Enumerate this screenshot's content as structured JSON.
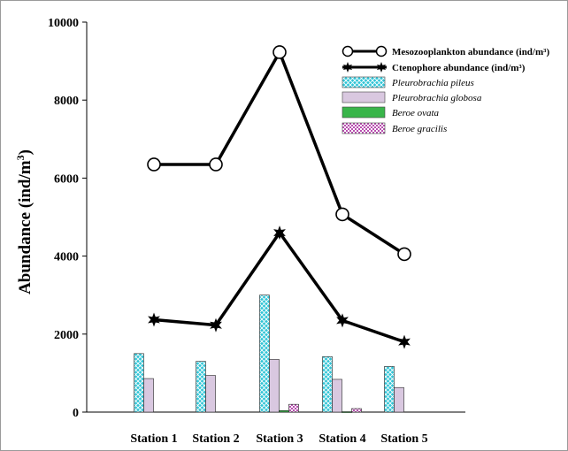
{
  "chart_data": {
    "type": "bar",
    "title": "",
    "xlabel": "",
    "ylabel_text": "Abundance (ind/m",
    "ylabel_sup": "3",
    "ylabel_close": ")",
    "ylim": [
      0,
      10000
    ],
    "yticks": [
      "0",
      "2000",
      "4000",
      "6000",
      "8000",
      "10000"
    ],
    "categories": [
      "Station 1",
      "Station 2",
      "Station 3",
      "Station 4",
      "Station 5"
    ],
    "lines": [
      {
        "name": "Mesozooplankton abundance (ind/m³)",
        "marker": "circle",
        "values": [
          6350,
          6350,
          9230,
          5070,
          4050
        ]
      },
      {
        "name": "Ctenophore abundance  (ind/m³)",
        "marker": "star",
        "values": [
          2370,
          2230,
          4600,
          2350,
          1800
        ]
      }
    ],
    "series": [
      {
        "name": "Pleurobrachia pileus",
        "color": "#2ec4d6",
        "pattern": "crosshatch",
        "values": [
          1500,
          1300,
          3000,
          1420,
          1170
        ]
      },
      {
        "name": "Pleurobrachia globosa",
        "color": "#d9c8e0",
        "pattern": "solid",
        "values": [
          860,
          940,
          1350,
          840,
          630
        ]
      },
      {
        "name": "Beroe ovata",
        "color": "#39b54a",
        "pattern": "solid",
        "values": [
          0,
          0,
          40,
          10,
          0
        ]
      },
      {
        "name": "Beroe gracilis",
        "color": "#b84fb0",
        "pattern": "checker",
        "values": [
          0,
          0,
          200,
          90,
          0
        ]
      }
    ],
    "legend_position": "top-right",
    "grid": false
  }
}
